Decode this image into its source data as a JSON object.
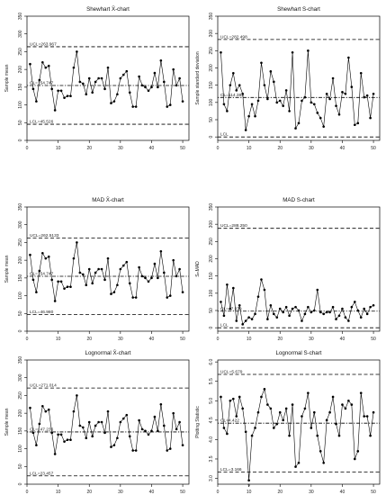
{
  "figure": {
    "background": "#ffffff",
    "line_color": "#000000"
  },
  "chart_data": [
    {
      "type": "line",
      "title": "Shewhart X̄-chart",
      "xlabel": "",
      "ylabel": "Sample mean",
      "xlim": [
        0,
        52
      ],
      "xticks": [
        0,
        10,
        20,
        30,
        40,
        50
      ],
      "ylim": [
        0,
        350
      ],
      "yticks": [
        0,
        50,
        100,
        150,
        200,
        250,
        300,
        350
      ],
      "x": [
        1,
        2,
        3,
        4,
        5,
        6,
        7,
        8,
        9,
        10,
        11,
        12,
        13,
        14,
        15,
        16,
        17,
        18,
        19,
        20,
        21,
        22,
        23,
        24,
        25,
        26,
        27,
        28,
        29,
        30,
        31,
        32,
        33,
        34,
        35,
        36,
        37,
        38,
        39,
        40,
        41,
        42,
        43,
        44,
        45,
        46,
        47,
        48,
        49,
        50
      ],
      "y": [
        215,
        145,
        110,
        170,
        220,
        205,
        210,
        145,
        85,
        140,
        140,
        120,
        125,
        125,
        205,
        250,
        165,
        160,
        130,
        175,
        135,
        165,
        175,
        175,
        145,
        205,
        105,
        110,
        130,
        175,
        185,
        195,
        135,
        95,
        95,
        180,
        155,
        150,
        140,
        150,
        190,
        150,
        225,
        165,
        95,
        100,
        200,
        155,
        175,
        110
      ],
      "limits": [
        {
          "name": "UCL",
          "label": "UCL=263.967",
          "value": 263.967,
          "style": "dashed"
        },
        {
          "name": "CL",
          "label": "CL=154.747",
          "value": 154.747,
          "style": "dotdash"
        },
        {
          "name": "LCL",
          "label": "LCL=45.526",
          "value": 45.526,
          "style": "dashed"
        }
      ],
      "extra_labels": []
    },
    {
      "type": "line",
      "title": "Shewhart S-chart",
      "xlabel": "",
      "ylabel": "Sample standard deviation",
      "xlim": [
        0,
        52
      ],
      "xticks": [
        0,
        10,
        20,
        30,
        40,
        50
      ],
      "ylim": [
        -10,
        350
      ],
      "yticks": [
        0,
        50,
        100,
        150,
        200,
        250,
        300,
        350
      ],
      "x": [
        1,
        2,
        3,
        4,
        5,
        6,
        7,
        8,
        9,
        10,
        11,
        12,
        13,
        14,
        15,
        16,
        17,
        18,
        19,
        20,
        21,
        22,
        23,
        24,
        25,
        26,
        27,
        28,
        29,
        30,
        31,
        32,
        33,
        34,
        35,
        36,
        37,
        38,
        39,
        40,
        41,
        42,
        43,
        44,
        45,
        46,
        47,
        48,
        49,
        50
      ],
      "y": [
        245,
        95,
        75,
        150,
        185,
        135,
        150,
        125,
        20,
        60,
        95,
        60,
        105,
        215,
        150,
        110,
        190,
        160,
        100,
        105,
        90,
        135,
        75,
        245,
        25,
        40,
        105,
        115,
        250,
        100,
        95,
        70,
        55,
        30,
        125,
        110,
        170,
        90,
        65,
        130,
        125,
        230,
        145,
        35,
        40,
        185,
        115,
        120,
        55,
        125
      ],
      "limits": [
        {
          "name": "UCL",
          "label": "UCL=282.498",
          "value": 282.498,
          "style": "dashed"
        },
        {
          "name": "CL",
          "label": "CL=114.383",
          "value": 114.383,
          "style": "dotdash"
        },
        {
          "name": "LCL",
          "label": "LCL",
          "value": 0,
          "style": "dashed"
        }
      ],
      "extra_labels": []
    },
    {
      "type": "line",
      "title": "MAD X̄-chart",
      "xlabel": "",
      "ylabel": "Sample mean",
      "xlim": [
        0,
        52
      ],
      "xticks": [
        0,
        10,
        20,
        30,
        40,
        50
      ],
      "ylim": [
        0,
        350
      ],
      "yticks": [
        0,
        50,
        100,
        150,
        200,
        250,
        300,
        350
      ],
      "x": [
        1,
        2,
        3,
        4,
        5,
        6,
        7,
        8,
        9,
        10,
        11,
        12,
        13,
        14,
        15,
        16,
        17,
        18,
        19,
        20,
        21,
        22,
        23,
        24,
        25,
        26,
        27,
        28,
        29,
        30,
        31,
        32,
        33,
        34,
        35,
        36,
        37,
        38,
        39,
        40,
        41,
        42,
        43,
        44,
        45,
        46,
        47,
        48,
        49,
        50
      ],
      "y": [
        215,
        145,
        110,
        170,
        220,
        205,
        210,
        145,
        85,
        140,
        140,
        120,
        125,
        125,
        205,
        250,
        165,
        160,
        130,
        175,
        135,
        165,
        175,
        175,
        145,
        205,
        105,
        110,
        130,
        175,
        185,
        195,
        135,
        95,
        95,
        180,
        155,
        150,
        140,
        150,
        190,
        150,
        225,
        165,
        95,
        100,
        200,
        155,
        175,
        110
      ],
      "limits": [
        {
          "name": "UCL",
          "label": "UCL=262.5133",
          "value": 262.5133,
          "style": "dashed"
        },
        {
          "name": "CL",
          "label": "CL=154.747",
          "value": 154.747,
          "style": "dotdash"
        },
        {
          "name": "LCL",
          "label": "LCL=46.980",
          "value": 46.98,
          "style": "dashed"
        }
      ],
      "extra_labels": []
    },
    {
      "type": "line",
      "title": "MAD S-chart",
      "xlabel": "",
      "ylabel": "SₘMAD",
      "xlim": [
        0,
        52
      ],
      "xticks": [
        0,
        10,
        20,
        30,
        40,
        50
      ],
      "ylim": [
        -10,
        350
      ],
      "yticks": [
        0,
        50,
        100,
        150,
        200,
        250,
        300,
        350
      ],
      "x": [
        1,
        2,
        3,
        4,
        5,
        6,
        7,
        8,
        9,
        10,
        11,
        12,
        13,
        14,
        15,
        16,
        17,
        18,
        19,
        20,
        21,
        22,
        23,
        24,
        25,
        26,
        27,
        28,
        29,
        30,
        31,
        32,
        33,
        34,
        35,
        36,
        37,
        38,
        39,
        40,
        41,
        42,
        43,
        44,
        45,
        46,
        47,
        48,
        49,
        50
      ],
      "y": [
        75,
        35,
        125,
        55,
        115,
        20,
        65,
        10,
        20,
        30,
        25,
        40,
        90,
        140,
        110,
        25,
        65,
        40,
        30,
        55,
        45,
        60,
        35,
        55,
        60,
        50,
        20,
        40,
        60,
        45,
        50,
        110,
        45,
        40,
        45,
        45,
        60,
        25,
        35,
        55,
        30,
        20,
        60,
        75,
        50,
        30,
        55,
        40,
        60,
        65
      ],
      "limits": [
        {
          "name": "UCL",
          "label": "UCL=288.250",
          "value": 288.25,
          "style": "dashed"
        },
        {
          "name": "CL",
          "label": "CL=47.979",
          "value": 47.979,
          "style": "dotdash"
        },
        {
          "name": "LCL",
          "label": "LCL",
          "value": 0,
          "style": "dashed"
        }
      ],
      "extra_labels": []
    },
    {
      "type": "line",
      "title": "Lognormal X̄-chart",
      "xlabel": "",
      "ylabel": "Sample mean",
      "xlim": [
        0,
        52
      ],
      "xticks": [
        0,
        10,
        20,
        30,
        40,
        50
      ],
      "ylim": [
        0,
        350
      ],
      "yticks": [
        0,
        50,
        100,
        150,
        200,
        250,
        300,
        350
      ],
      "x": [
        1,
        2,
        3,
        4,
        5,
        6,
        7,
        8,
        9,
        10,
        11,
        12,
        13,
        14,
        15,
        16,
        17,
        18,
        19,
        20,
        21,
        22,
        23,
        24,
        25,
        26,
        27,
        28,
        29,
        30,
        31,
        32,
        33,
        34,
        35,
        36,
        37,
        38,
        39,
        40,
        41,
        42,
        43,
        44,
        45,
        46,
        47,
        48,
        49,
        50
      ],
      "y": [
        215,
        145,
        110,
        170,
        220,
        205,
        210,
        145,
        85,
        140,
        140,
        120,
        125,
        125,
        205,
        250,
        165,
        160,
        130,
        175,
        135,
        165,
        175,
        175,
        145,
        205,
        105,
        110,
        130,
        175,
        185,
        195,
        135,
        95,
        95,
        180,
        155,
        150,
        140,
        150,
        190,
        150,
        225,
        165,
        95,
        100,
        200,
        155,
        175,
        110
      ],
      "limits": [
        {
          "name": "UCL",
          "label": "UCL=271.014",
          "value": 271.014,
          "style": "dashed"
        },
        {
          "name": "CL",
          "label": "CL=147.236",
          "value": 147.236,
          "style": "dotdash"
        },
        {
          "name": "LCL",
          "label": "LCL=23.457",
          "value": 23.457,
          "style": "dashed"
        }
      ],
      "extra_labels": []
    },
    {
      "type": "line",
      "title": "Lognormal S-chart",
      "xlabel": "",
      "ylabel": "Plotting Statistic",
      "xlim": [
        0,
        52
      ],
      "xticks": [
        0,
        10,
        20,
        30,
        40,
        50
      ],
      "ylim": [
        2.85,
        6.05
      ],
      "yticks": [
        3.0,
        3.5,
        4.0,
        4.5,
        5.0,
        5.5,
        6.0
      ],
      "x": [
        1,
        2,
        3,
        4,
        5,
        6,
        7,
        8,
        9,
        10,
        11,
        12,
        13,
        14,
        15,
        16,
        17,
        18,
        19,
        20,
        21,
        22,
        23,
        24,
        25,
        26,
        27,
        28,
        29,
        30,
        31,
        32,
        33,
        34,
        35,
        36,
        37,
        38,
        39,
        40,
        41,
        42,
        43,
        44,
        45,
        46,
        47,
        48,
        49,
        50
      ],
      "y": [
        5.1,
        4.3,
        4.15,
        5.0,
        5.05,
        4.6,
        5.1,
        4.8,
        4.2,
        2.95,
        4.1,
        4.3,
        4.7,
        5.1,
        5.3,
        4.9,
        4.8,
        4.3,
        4.4,
        4.7,
        4.5,
        4.8,
        4.1,
        4.9,
        3.3,
        3.4,
        4.6,
        4.8,
        5.2,
        4.3,
        4.7,
        4.1,
        3.7,
        3.4,
        4.5,
        4.7,
        5.1,
        4.4,
        4.1,
        4.9,
        4.8,
        5.0,
        4.9,
        3.5,
        3.7,
        5.2,
        4.6,
        4.6,
        4.1,
        4.7
      ],
      "limits": [
        {
          "name": "UCL",
          "label": "UCL=5.679",
          "value": 5.679,
          "style": "dashed"
        },
        {
          "name": "CL",
          "label": "CL=4.422",
          "value": 4.422,
          "style": "dotdash"
        },
        {
          "name": "LCL",
          "label": "LCL=3.166",
          "value": 3.166,
          "style": "dashed"
        }
      ],
      "extra_labels": [
        {
          "text": "9",
          "x": 10,
          "y": 2.95
        }
      ]
    }
  ]
}
